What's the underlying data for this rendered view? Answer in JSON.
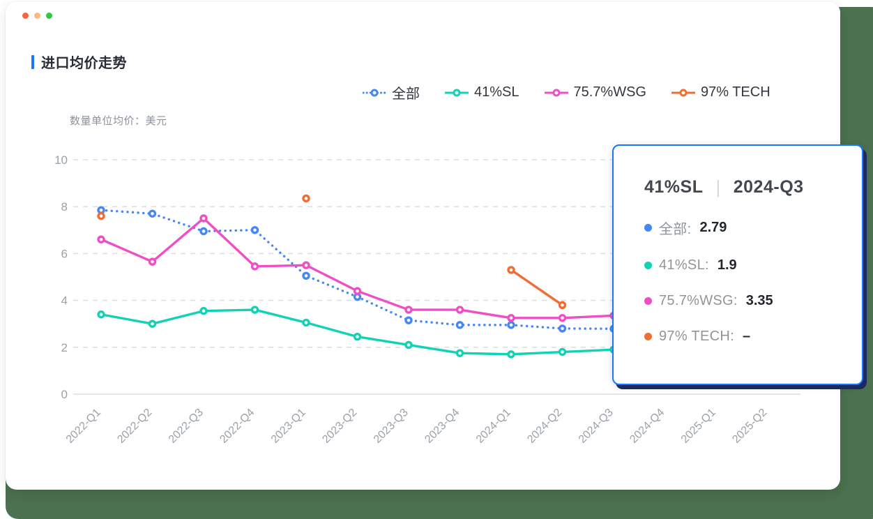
{
  "window": {
    "traffic_lights": [
      "#f3673e",
      "#f7bb80",
      "#32c846"
    ],
    "background_color": "#4b7150",
    "card_color": "#ffffff"
  },
  "header": {
    "title": "进口均价走势",
    "accent_color": "#1677ff"
  },
  "unit_note": "数量单位均价：美元",
  "chart_data": {
    "type": "line",
    "title": "进口均价走势",
    "unit_note": "数量单位均价：美元",
    "categories": [
      "2022-Q1",
      "2022-Q2",
      "2022-Q3",
      "2022-Q4",
      "2023-Q1",
      "2023-Q2",
      "2023-Q3",
      "2023-Q4",
      "2024-Q1",
      "2024-Q2",
      "2024-Q3",
      "2024-Q4",
      "2025-Q1",
      "2025-Q2"
    ],
    "yticks": [
      0,
      2,
      4,
      6,
      8,
      10
    ],
    "ylim": [
      0,
      10
    ],
    "grid": "dashed-horizontal",
    "legend_position": "top",
    "series": [
      {
        "name": "全部",
        "color": "#4687f2",
        "style": "dotted",
        "values": [
          7.85,
          7.7,
          6.95,
          7.0,
          5.05,
          4.15,
          3.15,
          2.95,
          2.95,
          2.8,
          2.79,
          null,
          null,
          null
        ]
      },
      {
        "name": "41%SL",
        "color": "#12d2b6",
        "style": "solid",
        "values": [
          3.4,
          3.0,
          3.55,
          3.6,
          3.05,
          2.45,
          2.1,
          1.75,
          1.7,
          1.8,
          1.9,
          null,
          null,
          null
        ]
      },
      {
        "name": "75.7%WSG",
        "color": "#ee4fc6",
        "style": "solid",
        "values": [
          6.6,
          5.65,
          7.5,
          5.45,
          5.5,
          4.4,
          3.6,
          3.6,
          3.25,
          3.25,
          3.35,
          null,
          null,
          null
        ]
      },
      {
        "name": "97% TECH",
        "color": "#f06e34",
        "style": "solid",
        "values": [
          7.6,
          null,
          null,
          null,
          8.35,
          null,
          null,
          null,
          5.3,
          3.8,
          null,
          null,
          null,
          null
        ]
      }
    ]
  },
  "tooltip": {
    "series_name": "41%SL",
    "separator": "|",
    "period": "2024-Q3",
    "border_color": "#1677ff",
    "rows": [
      {
        "label": "全部:",
        "value": "2.79"
      },
      {
        "label": "41%SL:",
        "value": "1.9"
      },
      {
        "label": "75.7%WSG:",
        "value": "3.35"
      },
      {
        "label": "97% TECH:",
        "value": "–"
      }
    ]
  }
}
